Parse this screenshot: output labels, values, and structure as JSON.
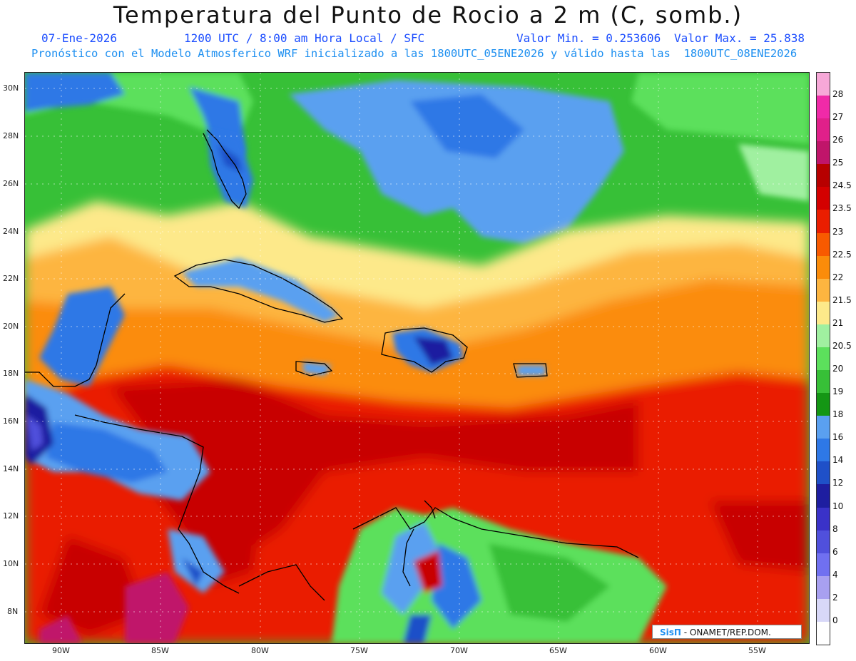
{
  "header": {
    "title": "Temperatura del Punto de Rocio a 2 m (C, somb.)",
    "date": "07-Ene-2026",
    "time": "1200 UTC / 8:00 am Hora Local / SFC",
    "min_label": "Valor Min. = 0.253606",
    "max_label": "Valor Max. = 25.838",
    "model_line": "Pronóstico con el Modelo Atmosferico WRF inicializado a las 1800UTC_05ENE2026 y válido hasta las  1800UTC_08ENE2026"
  },
  "axes": {
    "lat_labels": [
      "30N",
      "28N",
      "26N",
      "24N",
      "22N",
      "20N",
      "18N",
      "16N",
      "14N",
      "12N",
      "10N",
      "8N"
    ],
    "lon_labels": [
      "90W",
      "85W",
      "80W",
      "75W",
      "70W",
      "65W",
      "60W",
      "55W"
    ]
  },
  "colorbar": {
    "labels": [
      "28",
      "27",
      "26",
      "25",
      "24.5",
      "23.5",
      "23",
      "22.5",
      "22",
      "21.5",
      "21",
      "20.5",
      "20",
      "19",
      "18",
      "16",
      "14",
      "12",
      "10",
      "8",
      "6",
      "4",
      "2",
      "0"
    ],
    "colors": [
      "#f7a8d8",
      "#f02aa8",
      "#e0208a",
      "#c0156a",
      "#b70000",
      "#d40000",
      "#ea1e00",
      "#f85a00",
      "#fb8c0a",
      "#fdb540",
      "#fde98a",
      "#a0f0a0",
      "#5ce05c",
      "#37c037",
      "#149614",
      "#5aa0f0",
      "#2e78e6",
      "#1f50c8",
      "#1e1ea0",
      "#3a32c8",
      "#5050dc",
      "#7070f0",
      "#a8a0f0",
      "#d8d8f8",
      "#ffffff"
    ]
  },
  "credit": {
    "logo": "SisΠ",
    "text": "- ONAMET/REP.DOM."
  },
  "palette": {
    "blue": "#2e78e6",
    "lightblue": "#5aa0f0",
    "green": "#37c037",
    "lightgreen": "#5ce05c",
    "yellow": "#fde98a",
    "orange": "#fb8c0a",
    "red": "#ea1e00",
    "darkred": "#c80000"
  }
}
